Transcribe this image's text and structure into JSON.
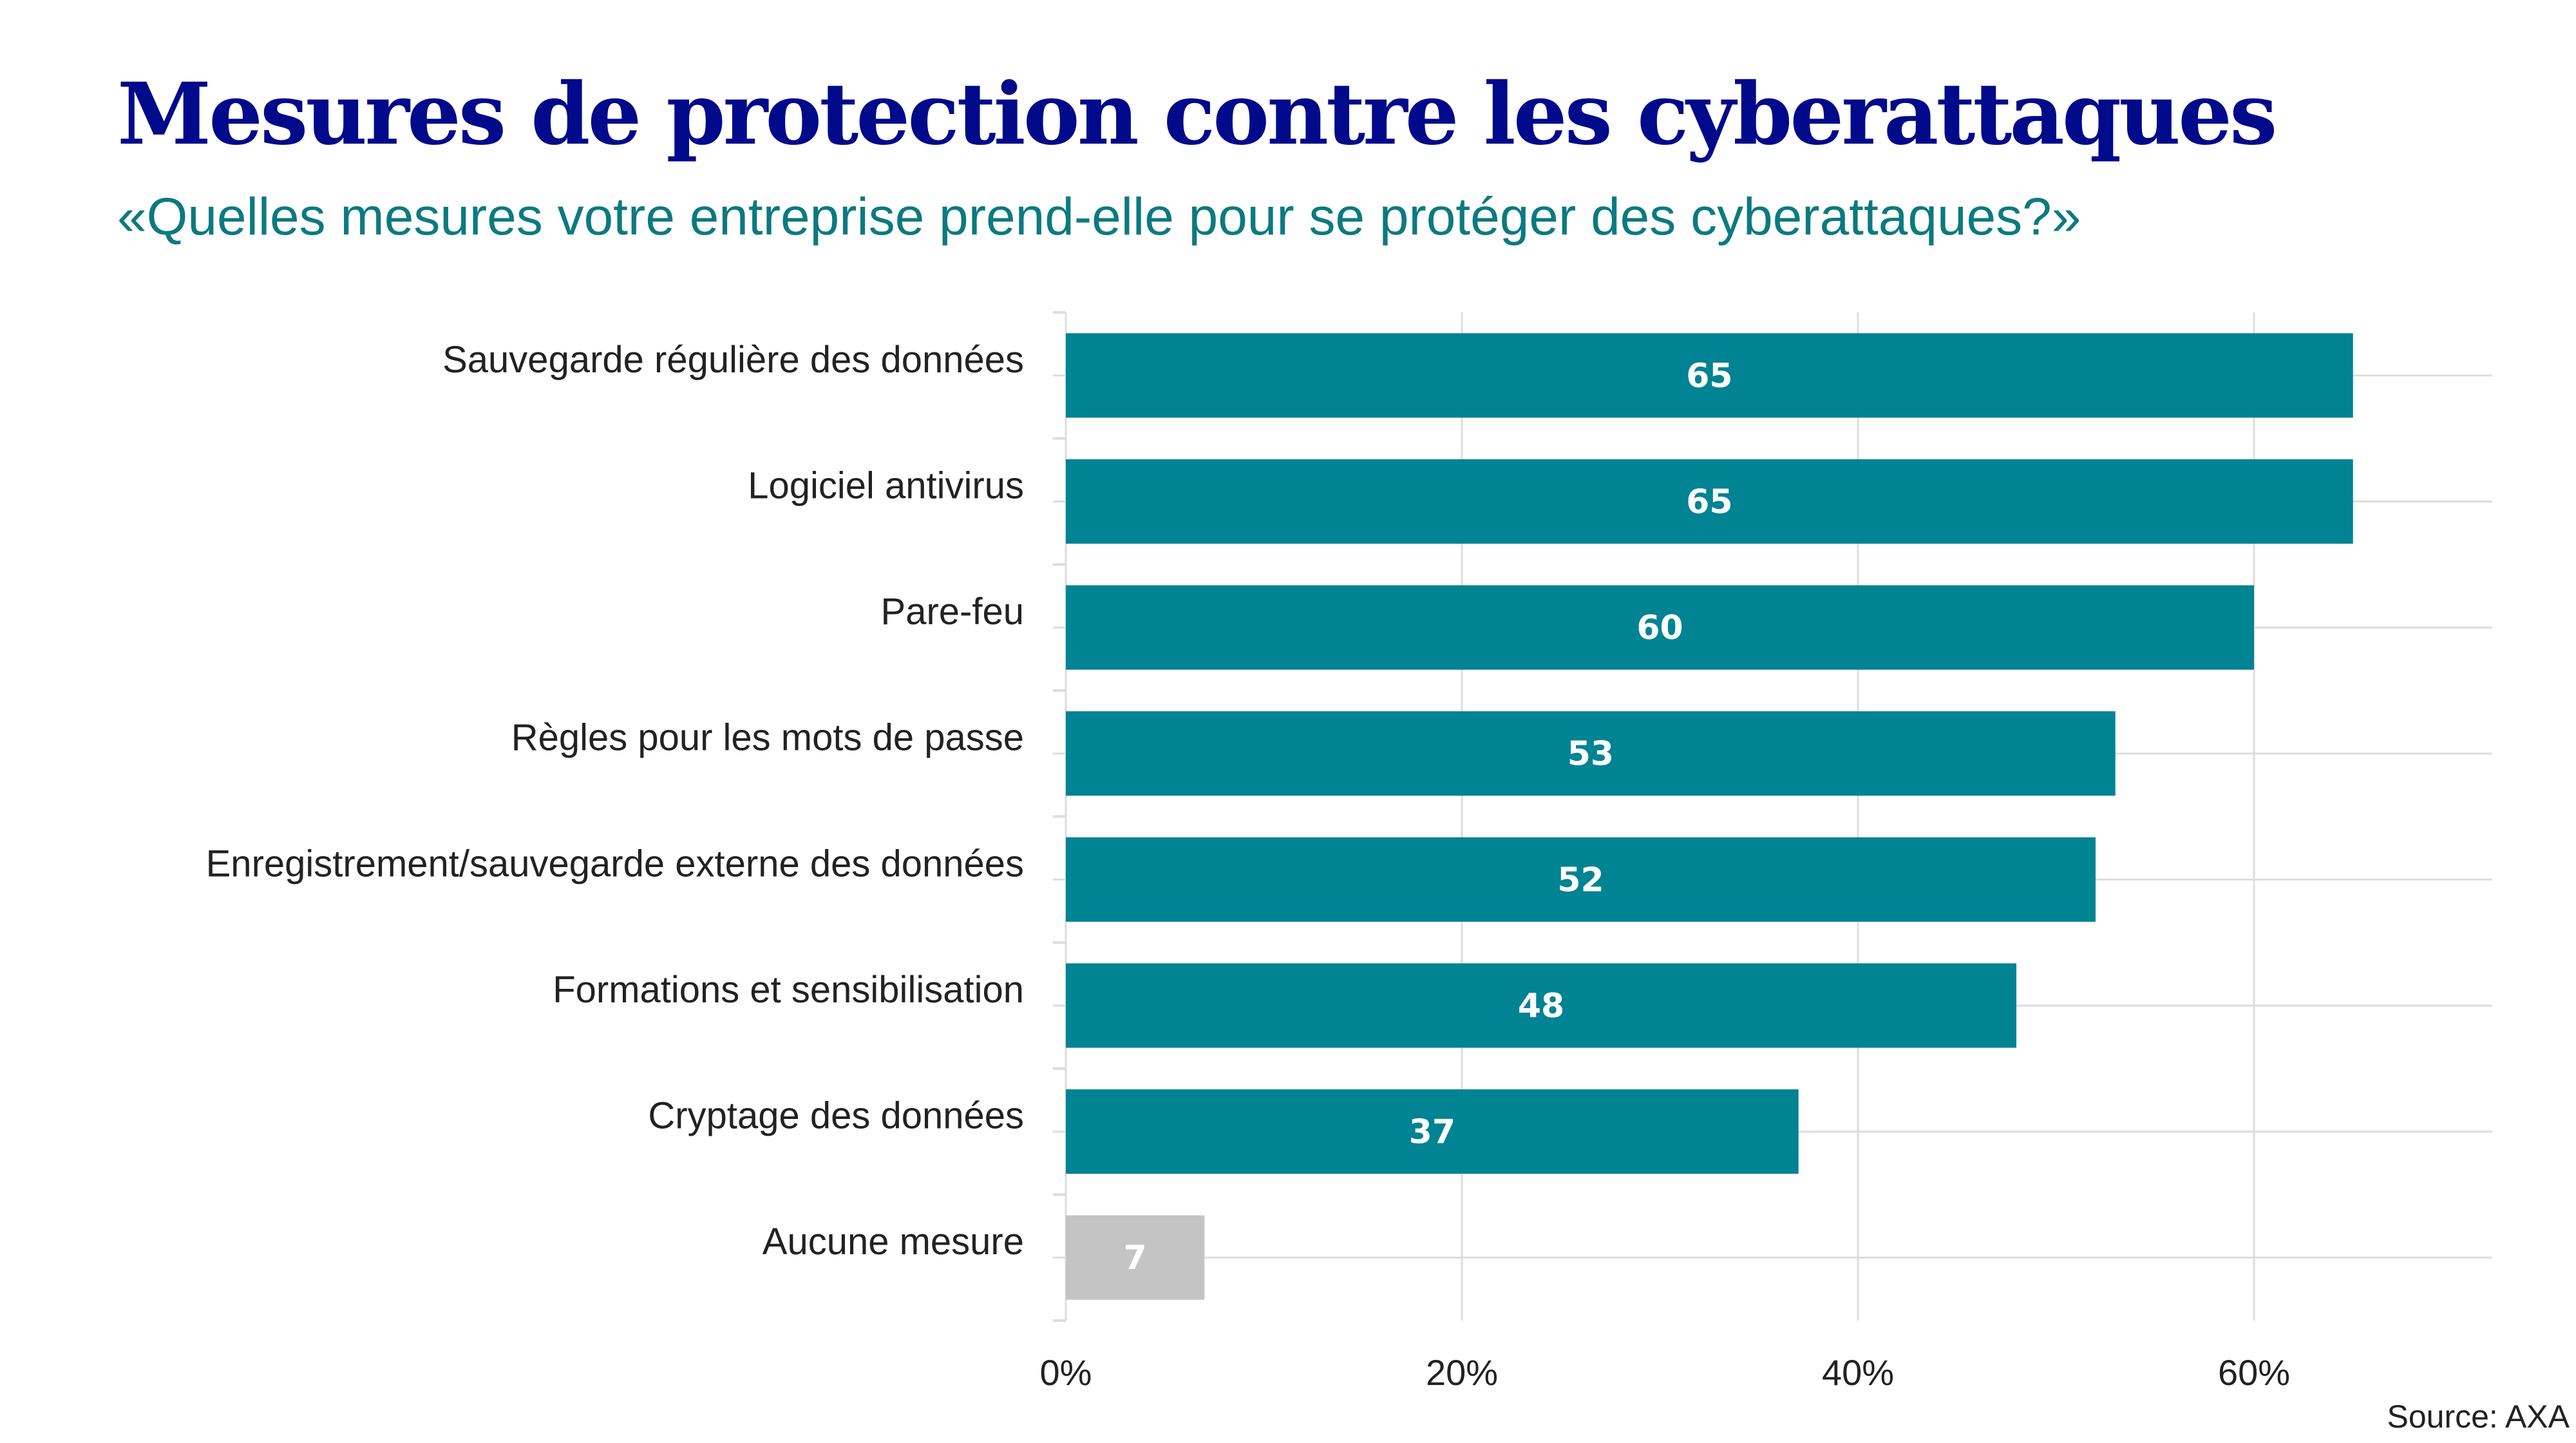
{
  "header": {
    "title": "Mesures de protection contre les cyberattaques",
    "subtitle": "«Quelles mesures votre entreprise prend-elle pour se protéger des cyberattaques?»"
  },
  "footer": {
    "source": "Source: AXA"
  },
  "colors": {
    "bar": "#008393",
    "bar_muted": "#c4c4c4",
    "title": "#000a8a",
    "subtitle": "#0b7a80",
    "grid": "#dddddd"
  },
  "chart_data": {
    "type": "bar",
    "orientation": "horizontal",
    "title": "Mesures de protection contre les cyberattaques",
    "subtitle": "«Quelles mesures votre entreprise prend-elle pour se protéger des cyberattaques?»",
    "categories": [
      "Sauvegarde régulière des données",
      "Logiciel antivirus",
      "Pare-feu",
      "Règles pour les mots de passe",
      "Enregistrement/sauvegarde externe des données",
      "Formations et sensibilisation",
      "Cryptage des données",
      "Aucune mesure"
    ],
    "values": [
      65,
      65,
      60,
      53,
      52,
      48,
      37,
      7
    ],
    "value_labels": [
      "65",
      "65",
      "60",
      "53",
      "52",
      "48",
      "37",
      "7"
    ],
    "highlight": [
      true,
      true,
      true,
      true,
      true,
      true,
      true,
      false
    ],
    "xlabel": "",
    "ylabel": "",
    "xlim": [
      0,
      72
    ],
    "xticks": [
      0,
      20,
      40,
      60
    ],
    "xtick_labels": [
      "0%",
      "20%",
      "40%",
      "60%"
    ],
    "grid": true,
    "legend": "none",
    "source": "Source: AXA"
  }
}
